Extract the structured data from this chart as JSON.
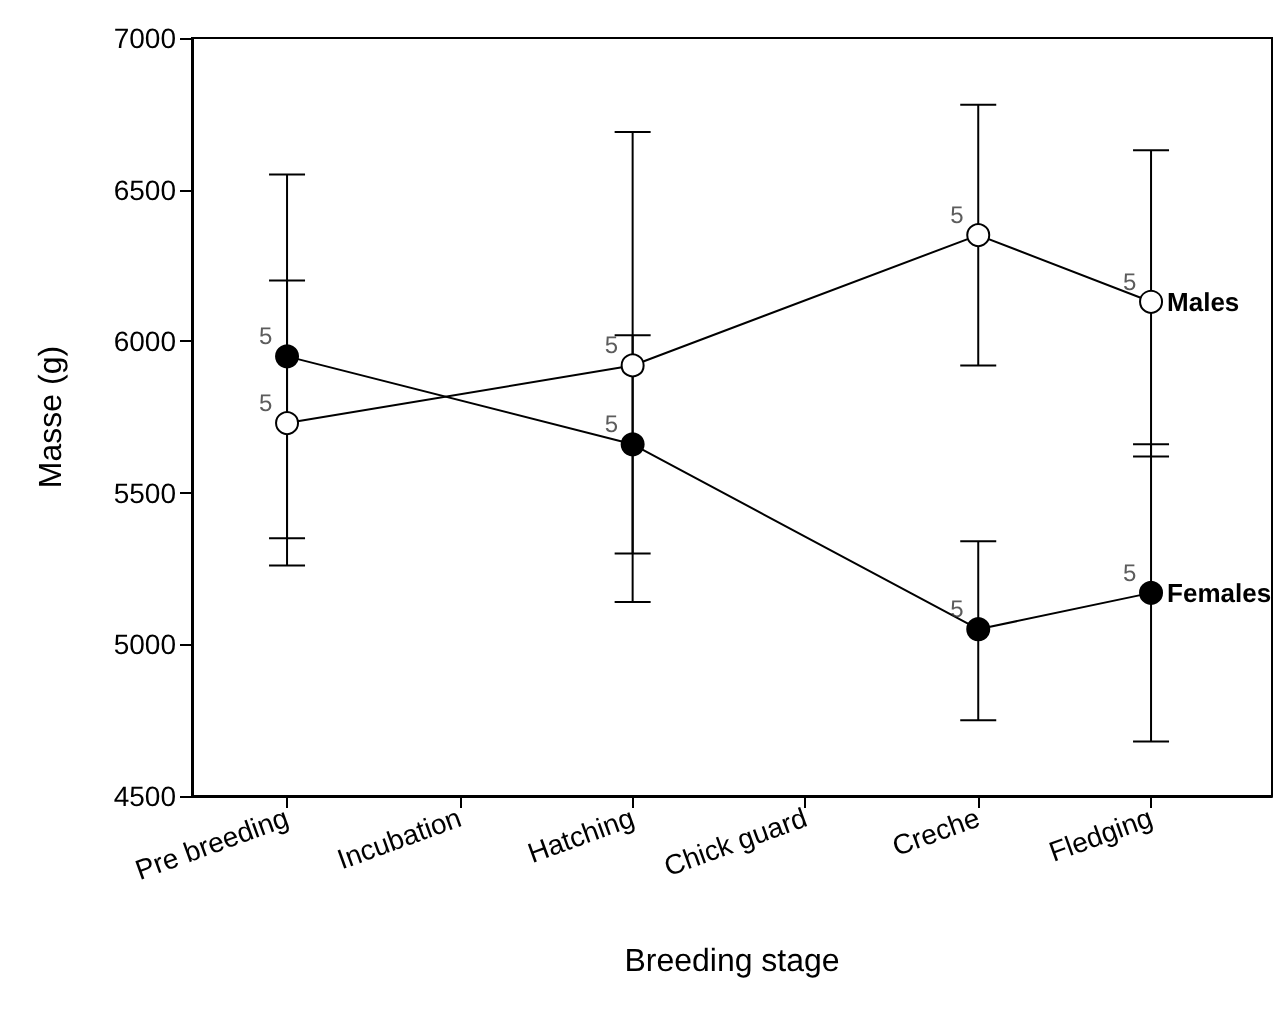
{
  "chart_data": {
    "type": "line",
    "xlabel": "Breeding stage",
    "ylabel": "Masse (g)",
    "categories": [
      "Pre breeding",
      "Incubation",
      "Hatching",
      "Chick guard",
      "Creche",
      "Fledging"
    ],
    "series": [
      {
        "name": "Males",
        "color": "#ffffff",
        "values": [
          5730,
          null,
          5920,
          null,
          6350,
          6130
        ],
        "errors": [
          [
            5260,
            6200
          ],
          null,
          [
            5140,
            6690
          ],
          null,
          [
            5920,
            6780
          ],
          [
            5620,
            6630
          ]
        ]
      },
      {
        "name": "Females",
        "color": "#000000",
        "values": [
          5950,
          null,
          5660,
          null,
          5050,
          5170
        ],
        "errors": [
          [
            5350,
            6550
          ],
          null,
          [
            5300,
            6020
          ],
          null,
          [
            4750,
            5340
          ],
          [
            4680,
            5660
          ]
        ]
      }
    ],
    "annotations": [
      "5",
      "5",
      "5",
      "5",
      "5",
      "5",
      "5",
      "5"
    ],
    "ylim": [
      4500,
      7000
    ],
    "yticks": [
      4500,
      5000,
      5500,
      6000,
      6500,
      7000
    ],
    "marker": "circle",
    "line_style": "solid",
    "grid": false,
    "legend": false
  }
}
